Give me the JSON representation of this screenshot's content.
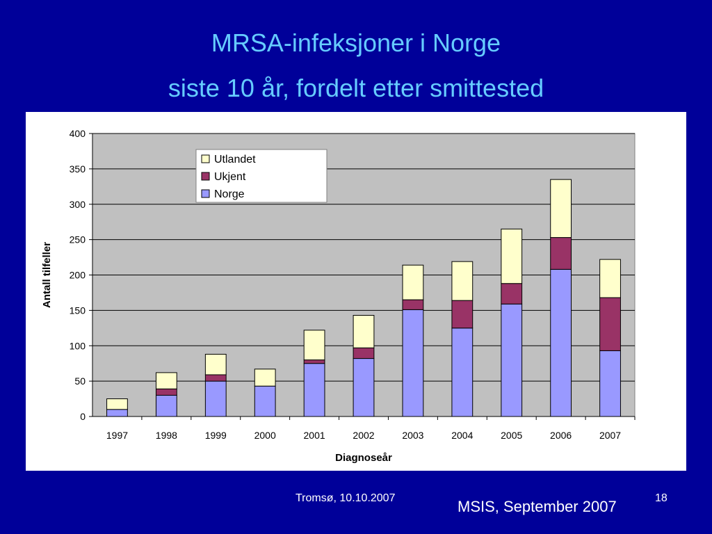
{
  "slide": {
    "title_line1": "MRSA-infeksjoner i Norge",
    "title_line2": "siste 10 år, fordelt etter smittested",
    "footer_date": "Tromsø, 10.10.2007",
    "footer_source": "MSIS, September 2007",
    "page_number": "18"
  },
  "chart_data": {
    "type": "bar",
    "stacked": true,
    "categories": [
      "1997",
      "1998",
      "1999",
      "2000",
      "2001",
      "2002",
      "2003",
      "2004",
      "2005",
      "2006",
      "2007"
    ],
    "series": [
      {
        "name": "Norge",
        "color": "#9999ff",
        "values": [
          10,
          30,
          50,
          43,
          75,
          82,
          151,
          125,
          159,
          208,
          93
        ]
      },
      {
        "name": "Ukjent",
        "color": "#993366",
        "values": [
          0,
          9,
          9,
          0,
          5,
          15,
          14,
          39,
          29,
          45,
          75
        ]
      },
      {
        "name": "Utlandet",
        "color": "#ffffcc",
        "values": [
          15,
          23,
          29,
          24,
          42,
          46,
          49,
          55,
          77,
          82,
          54
        ]
      }
    ],
    "legend_order": [
      "Utlandet",
      "Ukjent",
      "Norge"
    ],
    "legend_position": "top-left inside plot",
    "xlabel": "Diagnoseår",
    "ylabel": "Antall tilfeller",
    "ylim": [
      0,
      400
    ],
    "yticks": [
      0,
      50,
      100,
      150,
      200,
      250,
      300,
      350,
      400
    ],
    "grid": true,
    "plot_background": "#c0c0c0"
  }
}
